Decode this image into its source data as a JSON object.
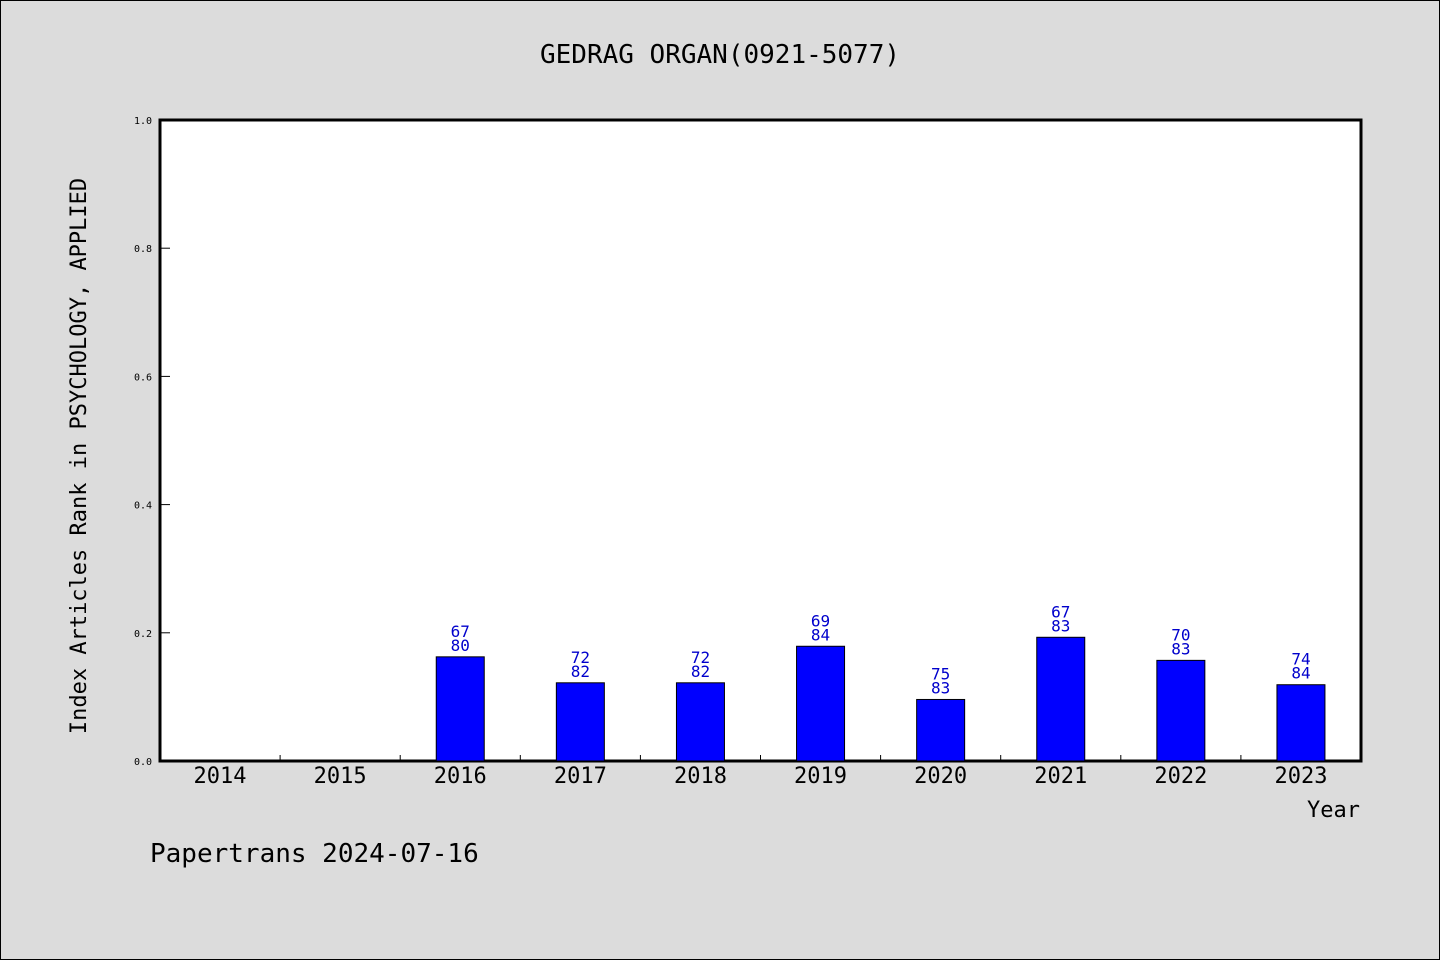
{
  "chart_data": {
    "type": "bar",
    "title": "GEDRAG ORGAN(0921-5077)",
    "xlabel": "Year",
    "ylabel": "Index Articles Rank in PSYCHOLOGY, APPLIED",
    "ylim": [
      0,
      1.0
    ],
    "yticks": [
      "0.0",
      "0.2",
      "0.4",
      "0.6",
      "0.8",
      "1.0"
    ],
    "grid": false,
    "categories": [
      "2014",
      "2015",
      "2016",
      "2017",
      "2018",
      "2019",
      "2020",
      "2021",
      "2022",
      "2023"
    ],
    "values": [
      0,
      0,
      0.1625,
      0.122,
      0.122,
      0.179,
      0.096,
      0.193,
      0.157,
      0.119
    ],
    "labels_top": [
      "",
      "",
      "67",
      "72",
      "72",
      "69",
      "75",
      "67",
      "70",
      "74"
    ],
    "labels_bottom": [
      "",
      "",
      "80",
      "82",
      "82",
      "84",
      "83",
      "83",
      "83",
      "84"
    ],
    "bar_color": "#0000ff"
  },
  "footer": "Papertrans 2024-07-16"
}
